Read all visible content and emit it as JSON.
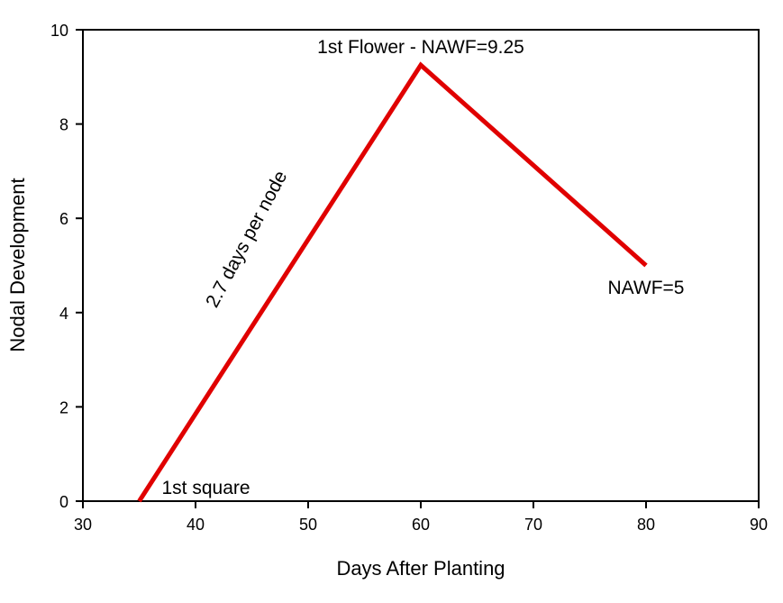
{
  "chart_data": {
    "type": "line",
    "title": "",
    "xlabel": "Days After Planting",
    "ylabel": "Nodal Development",
    "xlim": [
      30,
      90
    ],
    "ylim": [
      0,
      10
    ],
    "xticks": [
      30,
      40,
      50,
      60,
      70,
      80,
      90
    ],
    "yticks": [
      0,
      2,
      4,
      6,
      8,
      10
    ],
    "grid": false,
    "series": [
      {
        "x": [
          35,
          60,
          80
        ],
        "y": [
          0,
          9.25,
          5
        ],
        "color": "#e00000"
      }
    ],
    "annotations": [
      {
        "text": "1st square",
        "x": 37,
        "y": 0.15
      },
      {
        "text": "1st Flower - NAWF=9.25",
        "x": 60,
        "y": 9.5
      },
      {
        "text": "NAWF=5",
        "x": 80,
        "y": 4.4
      },
      {
        "text": "2.7 days per node",
        "x": 45,
        "y": 5.5,
        "rotation": -62
      }
    ]
  }
}
